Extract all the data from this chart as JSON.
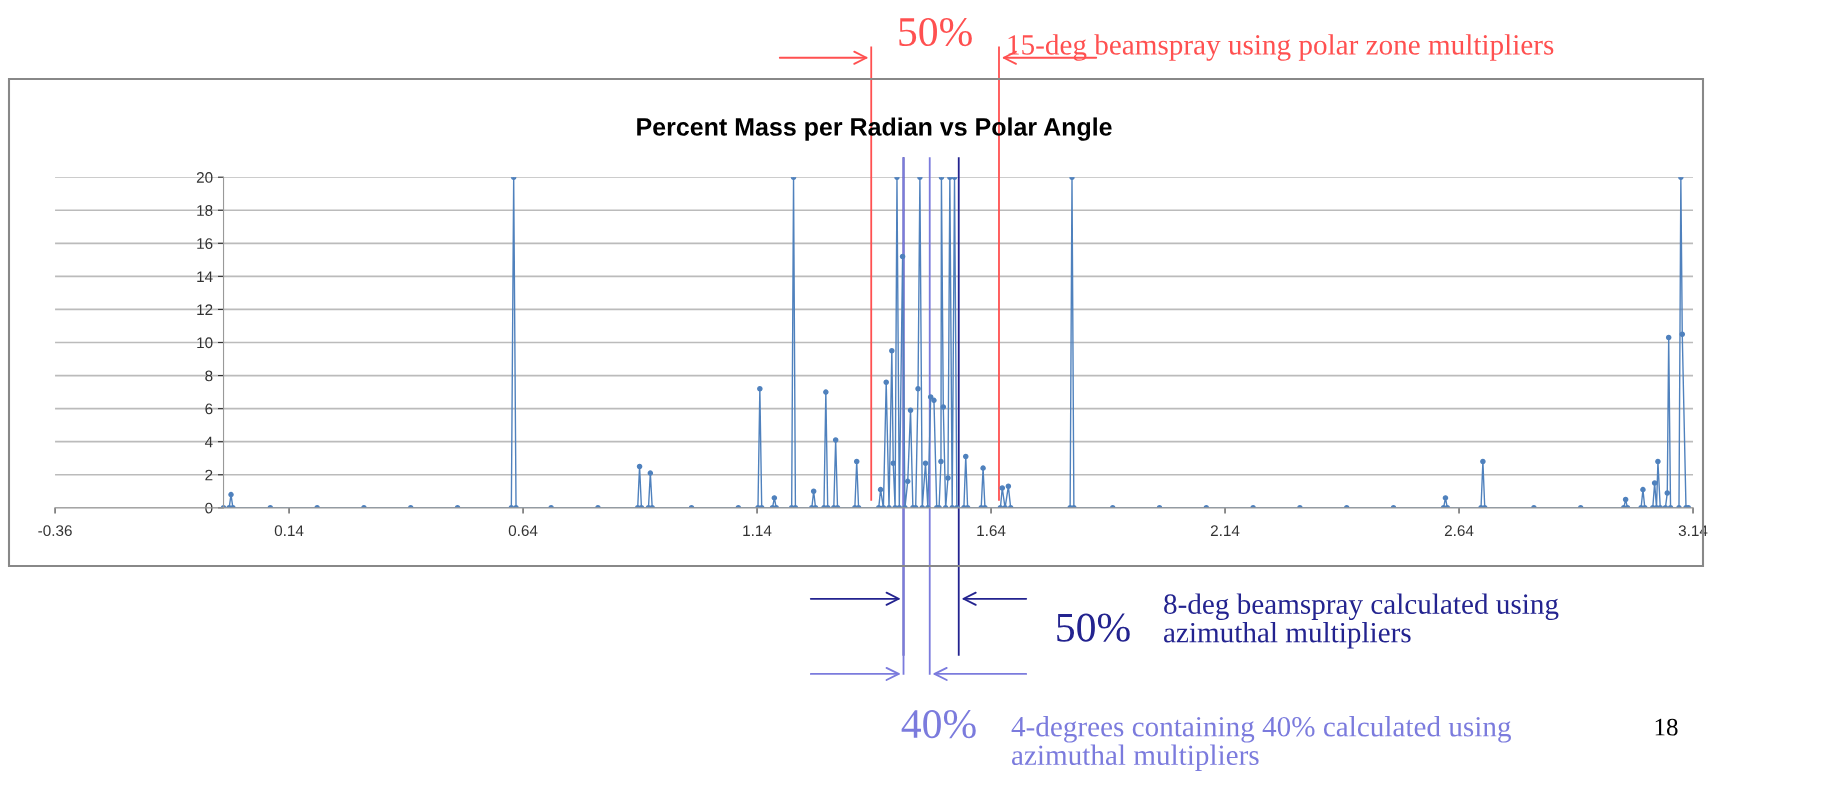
{
  "chart_data": {
    "type": "line",
    "title": "Percent Mass per Radian vs Polar Angle",
    "x": [
      0.0,
      0.012,
      0.016,
      0.02,
      0.1,
      0.2,
      0.3,
      0.4,
      0.5,
      0.615,
      0.62,
      0.625,
      0.7,
      0.8,
      0.885,
      0.889,
      0.893,
      0.908,
      0.912,
      0.916,
      1.0,
      1.1,
      1.142,
      1.146,
      1.15,
      1.173,
      1.177,
      1.181,
      1.214,
      1.218,
      1.222,
      1.257,
      1.261,
      1.265,
      1.283,
      1.287,
      1.291,
      1.304,
      1.308,
      1.312,
      1.349,
      1.353,
      1.357,
      1.4,
      1.404,
      1.41,
      1.416,
      1.422,
      1.428,
      1.431,
      1.435,
      1.439,
      1.444,
      1.451,
      1.456,
      1.462,
      1.468,
      1.473,
      1.479,
      1.484,
      1.488,
      1.493,
      1.5,
      1.505,
      1.511,
      1.518,
      1.524,
      1.529,
      1.533,
      1.534,
      1.538,
      1.543,
      1.548,
      1.552,
      1.557,
      1.562,
      1.567,
      1.582,
      1.586,
      1.59,
      1.619,
      1.623,
      1.627,
      1.66,
      1.664,
      1.67,
      1.677,
      1.682,
      1.809,
      1.813,
      1.817,
      1.9,
      2.0,
      2.1,
      2.2,
      2.3,
      2.4,
      2.5,
      2.607,
      2.611,
      2.615,
      2.687,
      2.691,
      2.695,
      2.8,
      2.9,
      2.992,
      2.996,
      3.0,
      3.029,
      3.033,
      3.037,
      3.054,
      3.058,
      3.062,
      3.065,
      3.07,
      3.081,
      3.085,
      3.088,
      3.092,
      3.11,
      3.114,
      3.117,
      3.125,
      3.13
    ],
    "series": [
      {
        "color": "#4f81bd",
        "values": [
          0,
          0,
          0.8,
          0,
          0,
          0,
          0,
          0,
          0,
          0,
          20,
          0,
          0,
          0,
          0,
          2.5,
          0,
          0,
          2.1,
          0,
          0,
          0,
          0,
          7.2,
          0,
          0,
          0.6,
          0,
          0,
          20,
          0,
          0,
          1.0,
          0,
          0,
          7.0,
          0,
          0,
          4.1,
          0,
          0,
          2.8,
          0,
          0,
          1.1,
          0,
          7.6,
          0,
          9.5,
          2.7,
          0,
          20,
          0,
          15.2,
          0,
          1.6,
          5.9,
          0,
          0,
          7.2,
          20,
          0,
          2.7,
          0,
          6.7,
          6.5,
          0,
          0,
          2.8,
          20,
          6.1,
          0,
          1.8,
          20,
          0,
          20,
          0,
          0,
          3.1,
          0,
          0,
          2.4,
          0,
          0,
          1.2,
          0,
          1.3,
          0,
          0,
          20,
          0,
          0,
          0,
          0,
          0,
          0,
          0,
          0,
          0,
          0.6,
          0,
          0,
          2.8,
          0,
          0,
          0,
          0,
          0.5,
          0,
          0,
          1.1,
          0,
          0,
          1.5,
          0,
          2.8,
          0,
          0,
          0.9,
          10.3,
          0,
          0,
          20,
          10.5,
          0,
          0
        ]
      }
    ],
    "xlim": [
      -0.36,
      3.14
    ],
    "xticks": [
      -0.36,
      0.14,
      0.64,
      1.14,
      1.64,
      2.14,
      2.64,
      3.14
    ],
    "ylim": [
      0,
      20
    ],
    "yticks": [
      0,
      2,
      4,
      6,
      8,
      10,
      12,
      14,
      16,
      18,
      20
    ],
    "grid": "y",
    "marker": "circle",
    "line_style": "solid",
    "ref_lines": [
      {
        "axis": "x",
        "value": 1.384,
        "color": "#ff5050"
      },
      {
        "axis": "x",
        "value": 1.657,
        "color": "#ff5050"
      },
      {
        "axis": "x",
        "value": 1.453,
        "color": "#23238f"
      },
      {
        "axis": "x",
        "value": 1.571,
        "color": "#23238f"
      },
      {
        "axis": "x",
        "value": 1.453,
        "color": "#7b7bdd"
      },
      {
        "axis": "x",
        "value": 1.509,
        "color": "#7b7bdd"
      }
    ],
    "annotations": [
      "50%",
      "15-deg beamspray using polar zone multipliers",
      "50%",
      "8-deg beamspray calculated using\nazimuthal multipliers",
      "40%",
      "4-degrees containing 40% calculated using\nazimuthal multipliers",
      "18"
    ]
  }
}
